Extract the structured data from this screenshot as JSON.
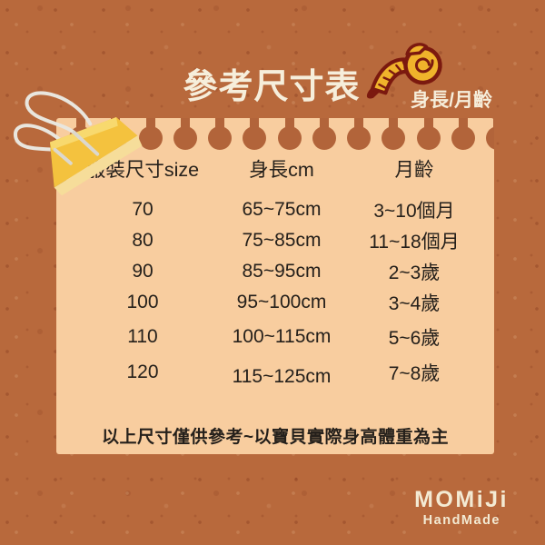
{
  "page": {
    "title": "參考尺寸表",
    "subtitle": "身長/月齡",
    "note": "以上尺寸僅供參考~以寶貝實際身高體重為主"
  },
  "table": {
    "headers": [
      "服裝尺寸size",
      "身長cm",
      "月齡"
    ],
    "rows": [
      [
        "70",
        "65~75cm",
        "3~10個月"
      ],
      [
        "80",
        "75~85cm",
        "11~18個月"
      ],
      [
        "90",
        "85~95cm",
        "2~3歲"
      ],
      [
        "100",
        "95~100cm",
        "3~4歲"
      ],
      [
        "110",
        "100~115cm",
        "5~6歲"
      ],
      [
        "120",
        "115~125cm",
        "7~8歲"
      ]
    ]
  },
  "brand": {
    "name": "MOMiJi",
    "tagline": "HandMade"
  },
  "icons": {
    "measuring_tape": "measuring-tape-icon",
    "binder_clip": "binder-clip-icon"
  },
  "colors": {
    "background": "#b8693c",
    "card": "#f8cd9f",
    "title_text": "#f6eedb",
    "table_text": "#25201b",
    "clip_yellow": "#f4c23e",
    "tape_gold": "#f0b32b",
    "tape_outline": "#7b190f"
  }
}
